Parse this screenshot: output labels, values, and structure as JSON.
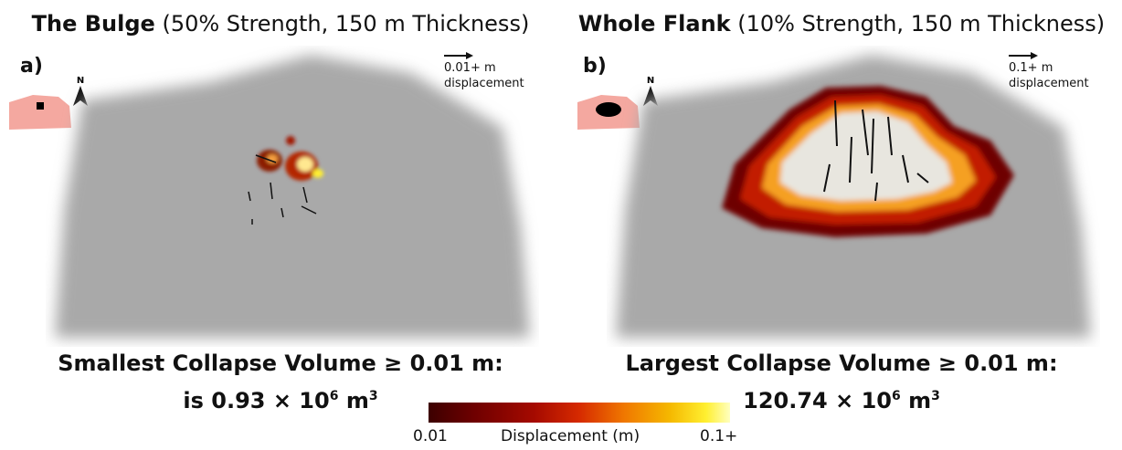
{
  "colors": {
    "terrain": "#a9a9a9",
    "inset_fill": "#f4a8a0",
    "inset_zone": "#000000",
    "colormap_low": "#3c0000",
    "colormap_high": "#ffffbf"
  },
  "panels": [
    {
      "letter": "a)",
      "title_bold": "The Bulge",
      "title_rest": "(50% Strength, 150 m Thickness)",
      "scale_text": "0.01+ m",
      "scale_sub": "displacement",
      "north": "N",
      "caption_line1": "Smallest Collapse Volume ≥ 0.01 m:",
      "caption_line2_prefix": "is 0.93 × 10",
      "caption_exp": "6",
      "caption_unit": " m",
      "caption_unit_exp": "3"
    },
    {
      "letter": "b)",
      "title_bold": "Whole Flank",
      "title_rest": "(10% Strength, 150 m Thickness)",
      "scale_text": "0.1+ m",
      "scale_sub": "displacement",
      "north": "N",
      "caption_line1": "Largest Collapse Volume  ≥  0.01 m:",
      "caption_line2_prefix": "120.74 × 10",
      "caption_exp": "6",
      "caption_unit": " m",
      "caption_unit_exp": "3"
    }
  ],
  "colorbar": {
    "min_label": "0.01",
    "title": "Displacement (m)",
    "max_label": "0.1+"
  }
}
